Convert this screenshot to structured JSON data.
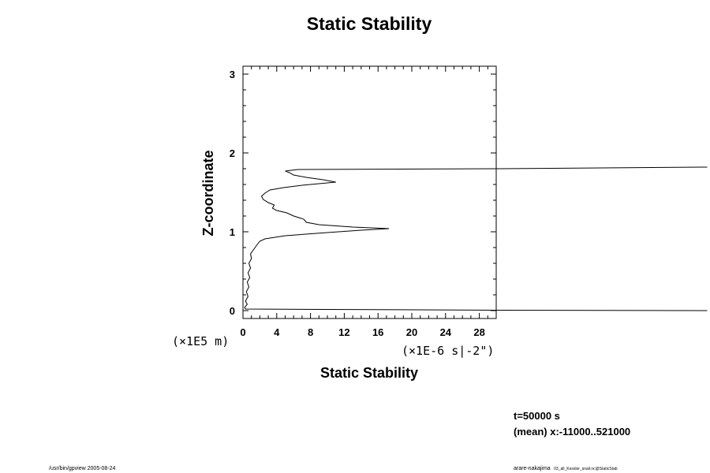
{
  "chart_data": {
    "type": "line",
    "title": "Static Stability",
    "xlabel": "Static Stability",
    "ylabel": "Z-coordinate",
    "x_unit": "(×1E-6 s|-2\")",
    "y_unit": "(×1E5 m)",
    "xlim": [
      0,
      30
    ],
    "ylim": [
      -0.1,
      3.1
    ],
    "x_ticks": [
      "0",
      "4",
      "8",
      "12",
      "16",
      "20",
      "24",
      "28"
    ],
    "x_tick_values": [
      0,
      4,
      8,
      12,
      16,
      20,
      24,
      28
    ],
    "y_ticks": [
      "0",
      "1",
      "2",
      "3"
    ],
    "y_tick_values": [
      0,
      1,
      2,
      3
    ],
    "grid": false,
    "series": [
      {
        "points": [
          [
            55,
            0.0
          ],
          [
            30,
            0.005
          ],
          [
            0.3,
            0.02
          ],
          [
            0.2,
            0.04
          ],
          [
            0.5,
            0.08
          ],
          [
            0.3,
            0.12
          ],
          [
            0.6,
            0.18
          ],
          [
            0.4,
            0.24
          ],
          [
            0.7,
            0.3
          ],
          [
            0.5,
            0.36
          ],
          [
            0.8,
            0.42
          ],
          [
            0.6,
            0.48
          ],
          [
            0.9,
            0.54
          ],
          [
            0.7,
            0.6
          ],
          [
            1.0,
            0.66
          ],
          [
            0.9,
            0.72
          ],
          [
            1.3,
            0.78
          ],
          [
            1.7,
            0.84
          ],
          [
            2.0,
            0.88
          ],
          [
            2.6,
            0.91
          ],
          [
            5.0,
            0.95
          ],
          [
            10.0,
            0.99
          ],
          [
            14.0,
            1.02
          ],
          [
            17.3,
            1.04
          ],
          [
            13.0,
            1.06
          ],
          [
            9.0,
            1.09
          ],
          [
            7.5,
            1.12
          ],
          [
            7.2,
            1.16
          ],
          [
            6.0,
            1.2
          ],
          [
            5.2,
            1.24
          ],
          [
            4.0,
            1.27
          ],
          [
            3.5,
            1.3
          ],
          [
            3.7,
            1.34
          ],
          [
            3.0,
            1.37
          ],
          [
            2.4,
            1.41
          ],
          [
            2.2,
            1.45
          ],
          [
            2.6,
            1.49
          ],
          [
            3.2,
            1.53
          ],
          [
            4.8,
            1.56
          ],
          [
            7.0,
            1.59
          ],
          [
            11.0,
            1.63
          ],
          [
            9.5,
            1.66
          ],
          [
            7.5,
            1.69
          ],
          [
            6.0,
            1.72
          ],
          [
            5.5,
            1.75
          ],
          [
            5.0,
            1.77
          ],
          [
            6.5,
            1.79
          ],
          [
            30,
            1.8
          ],
          [
            55,
            1.82
          ]
        ]
      }
    ]
  },
  "info": {
    "time": "t=50000 s",
    "mean": "(mean) x:-11000..521000"
  },
  "footer": {
    "left": "/usr/bin/gpview 2005-08-24",
    "right_main": "arare-nakajima",
    "right_sub": "03_all_Kessler_snail.nc@StaticStab"
  }
}
